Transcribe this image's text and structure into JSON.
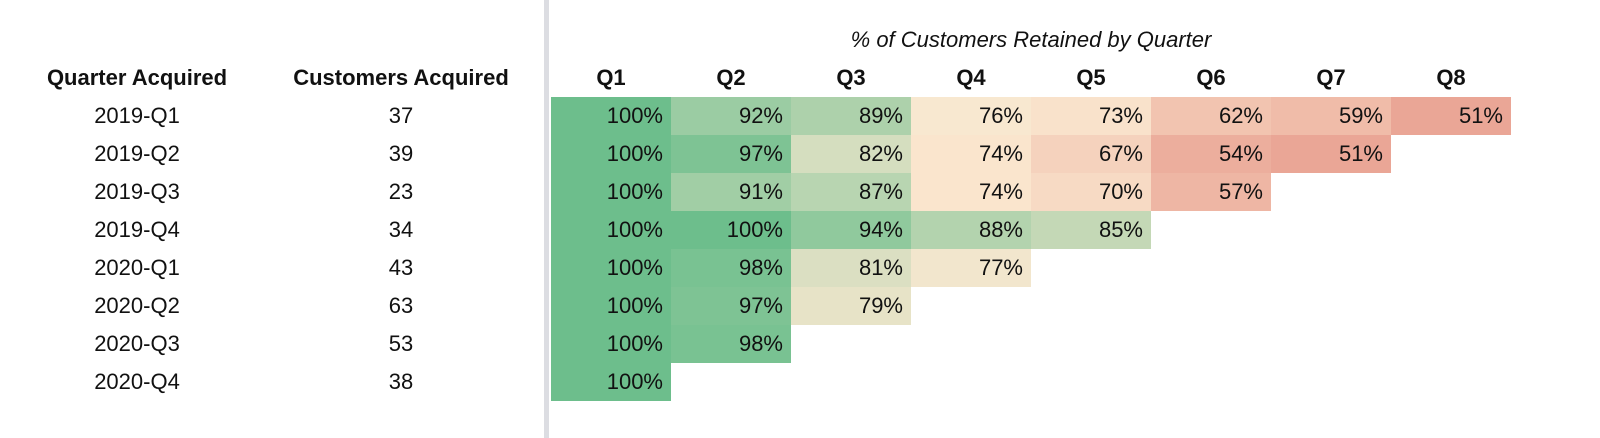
{
  "table": {
    "title": "% of Customers Retained by Quarter",
    "columns": [
      "Quarter Acquired",
      "Customers Acquired",
      "Q1",
      "Q2",
      "Q3",
      "Q4",
      "Q5",
      "Q6",
      "Q7",
      "Q8"
    ],
    "rows": [
      {
        "quarter": "2019-Q1",
        "customers": 37,
        "retention": [
          "100%",
          "92%",
          "89%",
          "76%",
          "73%",
          "62%",
          "59%",
          "51%"
        ]
      },
      {
        "quarter": "2019-Q2",
        "customers": 39,
        "retention": [
          "100%",
          "97%",
          "82%",
          "74%",
          "67%",
          "54%",
          "51%"
        ]
      },
      {
        "quarter": "2019-Q3",
        "customers": 23,
        "retention": [
          "100%",
          "91%",
          "87%",
          "74%",
          "70%",
          "57%"
        ]
      },
      {
        "quarter": "2019-Q4",
        "customers": 34,
        "retention": [
          "100%",
          "100%",
          "94%",
          "88%",
          "85%"
        ]
      },
      {
        "quarter": "2020-Q1",
        "customers": 43,
        "retention": [
          "100%",
          "98%",
          "81%",
          "77%"
        ]
      },
      {
        "quarter": "2020-Q2",
        "customers": 63,
        "retention": [
          "100%",
          "97%",
          "79%"
        ]
      },
      {
        "quarter": "2020-Q3",
        "customers": 53,
        "retention": [
          "100%",
          "98%"
        ]
      },
      {
        "quarter": "2020-Q4",
        "customers": 38,
        "retention": [
          "100%"
        ]
      }
    ],
    "color_scale": {
      "min": "#eaa696",
      "mid": "#fbe9d1",
      "max": "#6dbe8c"
    }
  }
}
